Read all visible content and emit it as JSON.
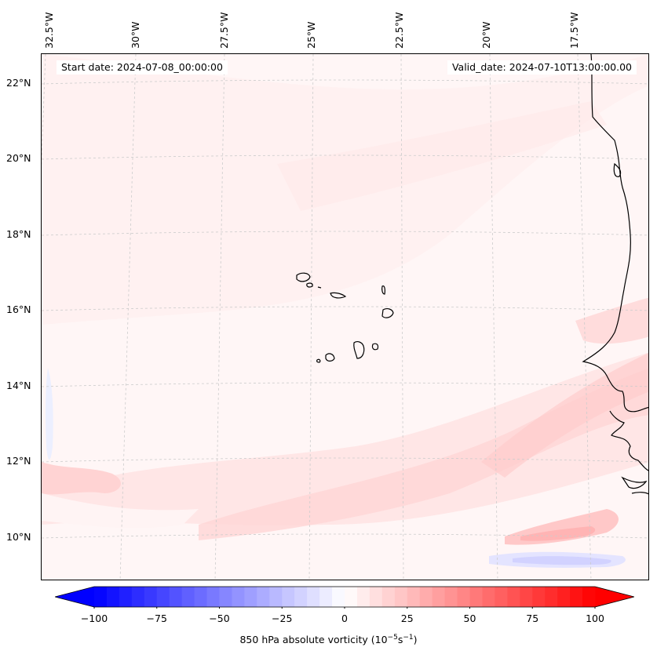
{
  "header": {
    "start_date": "Start date: 2024-07-08_00:00:00",
    "valid_date": "Valid_date: 2024-07-10T13:00:00.00"
  },
  "longitude_labels": [
    "32.5°W",
    "30°W",
    "27.5°W",
    "25°W",
    "22.5°W",
    "20°W",
    "17.5°W"
  ],
  "latitude_labels": [
    "22°N",
    "20°N",
    "18°N",
    "16°N",
    "14°N",
    "12°N",
    "10°N"
  ],
  "colorbar": {
    "min": -100,
    "max": 100,
    "tick_values": [
      -100,
      -75,
      -50,
      -25,
      0,
      25,
      50,
      75,
      100
    ],
    "tick_labels": [
      "−100",
      "−75",
      "−50",
      "−25",
      "0",
      "25",
      "50",
      "75",
      "100"
    ],
    "title": "850 hPa absolute vorticity (10",
    "title_exp1": "−5",
    "title_mid": "s",
    "title_exp2": "−1",
    "title_end": ")",
    "neg_color": "#0000ff",
    "zero_color": "#ffffff",
    "pos_color": "#ff0000"
  },
  "colors": {
    "background": "#fff6f6",
    "coastline": "#000000",
    "gridline": "#cccccc"
  }
}
